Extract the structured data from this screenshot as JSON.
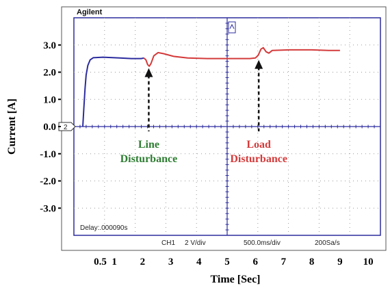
{
  "scope": {
    "brand": "Agilent",
    "delay_label": "Delay:.000090s",
    "ch1_label": "CH1",
    "volts_div": "2 V/div",
    "time_div": "500.0ms/div",
    "sample_rate": "200Sa/s",
    "ground_marker": "2"
  },
  "chart_data": {
    "type": "line",
    "xlabel": "Time [Sec]",
    "ylabel": "Current [A]",
    "x_ticks": [
      "0.5",
      "1",
      "2",
      "3",
      "4",
      "5",
      "6",
      "7",
      "8",
      "9",
      "10"
    ],
    "y_ticks": [
      "3.0",
      "2.0",
      "1.0",
      "0.0",
      "-1.0",
      "-2.0",
      "-3.0"
    ],
    "ylim": [
      -4,
      4
    ],
    "grid": true,
    "series": [
      {
        "color": "#2b2b9e",
        "points": [
          [
            -0.12,
            0
          ],
          [
            -0.08,
            0.7
          ],
          [
            -0.04,
            1.4
          ],
          [
            0.0,
            1.9
          ],
          [
            0.06,
            2.25
          ],
          [
            0.14,
            2.45
          ],
          [
            0.25,
            2.53
          ],
          [
            0.6,
            2.55
          ],
          [
            1.2,
            2.52
          ],
          [
            1.6,
            2.5
          ],
          [
            1.95,
            2.5
          ],
          [
            2.05,
            2.52
          ]
        ]
      },
      {
        "color": "#d43a3a",
        "points": [
          [
            2.05,
            2.52
          ],
          [
            2.12,
            2.45
          ],
          [
            2.18,
            2.28
          ],
          [
            2.24,
            2.22
          ],
          [
            2.3,
            2.32
          ],
          [
            2.4,
            2.6
          ],
          [
            2.55,
            2.72
          ],
          [
            2.75,
            2.68
          ],
          [
            3.1,
            2.58
          ],
          [
            3.6,
            2.52
          ],
          [
            4.3,
            2.5
          ],
          [
            5.3,
            2.5
          ],
          [
            5.8,
            2.5
          ],
          [
            6.0,
            2.52
          ],
          [
            6.1,
            2.62
          ],
          [
            6.2,
            2.85
          ],
          [
            6.28,
            2.9
          ],
          [
            6.38,
            2.75
          ],
          [
            6.48,
            2.7
          ],
          [
            6.6,
            2.8
          ],
          [
            7.2,
            2.82
          ],
          [
            8.0,
            2.82
          ],
          [
            8.6,
            2.8
          ],
          [
            9.0,
            2.8
          ]
        ]
      }
    ],
    "annotations": [
      {
        "label_lines": [
          "Line",
          "Disturbance"
        ],
        "x": 2.22,
        "y": 2.25,
        "color": "#2e7d32"
      },
      {
        "label_lines": [
          "Load",
          "Disturbance"
        ],
        "x": 6.12,
        "y": 2.55,
        "color": "#d43a3a"
      }
    ]
  }
}
